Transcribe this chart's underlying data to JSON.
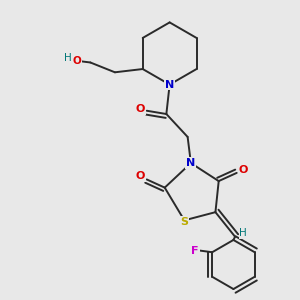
{
  "background_color": "#e8e8e8",
  "bond_color": "#2a2a2a",
  "atom_colors": {
    "O": "#dd0000",
    "N": "#0000cc",
    "S": "#bbaa00",
    "F": "#cc00cc",
    "H": "#007777",
    "HO": "#007777"
  }
}
